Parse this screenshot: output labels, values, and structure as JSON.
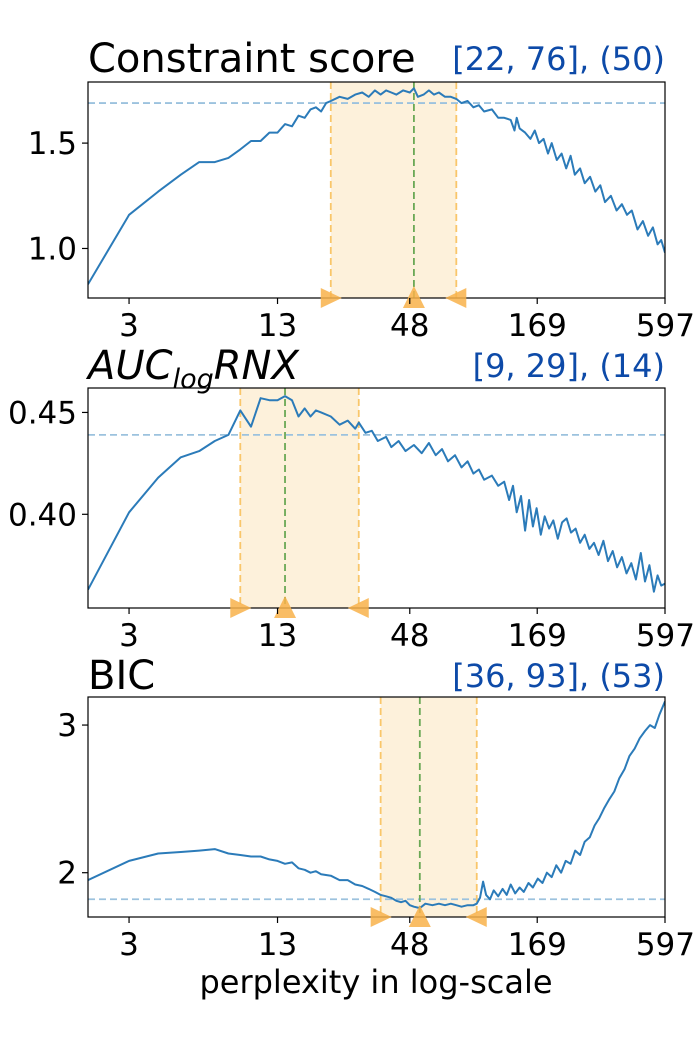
{
  "chart_data": [
    {
      "type": "line",
      "title": "Constraint score",
      "annotation": "[22, 76], (50)",
      "x_scale": "log",
      "xlim": [
        2,
        597
      ],
      "ylim": [
        0.765,
        1.79
      ],
      "x_ticks": [
        3,
        13,
        48,
        169,
        597
      ],
      "y_ticks": [
        1.0,
        1.5
      ],
      "y_tick_labels": [
        "1.0",
        "1.5"
      ],
      "threshold": 1.69,
      "range": [
        22,
        76
      ],
      "best": 50,
      "grid": false,
      "series": [
        {
          "values": [
            [
              2,
              0.83
            ],
            [
              3,
              1.16
            ],
            [
              4,
              1.27
            ],
            [
              5,
              1.35
            ],
            [
              6,
              1.41
            ],
            [
              7,
              1.41
            ],
            [
              8,
              1.43
            ],
            [
              9,
              1.47
            ],
            [
              10,
              1.51
            ],
            [
              11,
              1.51
            ],
            [
              12,
              1.55
            ],
            [
              13,
              1.55
            ],
            [
              14,
              1.59
            ],
            [
              15,
              1.58
            ],
            [
              16,
              1.63
            ],
            [
              17,
              1.62
            ],
            [
              18,
              1.66
            ],
            [
              19,
              1.67
            ],
            [
              20,
              1.65
            ],
            [
              21,
              1.69
            ],
            [
              22,
              1.7
            ],
            [
              24,
              1.72
            ],
            [
              26,
              1.71
            ],
            [
              28,
              1.73
            ],
            [
              30,
              1.74
            ],
            [
              32,
              1.72
            ],
            [
              34,
              1.75
            ],
            [
              36,
              1.73
            ],
            [
              38,
              1.75
            ],
            [
              40,
              1.74
            ],
            [
              42,
              1.73
            ],
            [
              45,
              1.75
            ],
            [
              48,
              1.74
            ],
            [
              50,
              1.76
            ],
            [
              52,
              1.72
            ],
            [
              55,
              1.73
            ],
            [
              58,
              1.75
            ],
            [
              61,
              1.73
            ],
            [
              64,
              1.74
            ],
            [
              68,
              1.72
            ],
            [
              72,
              1.72
            ],
            [
              76,
              1.71
            ],
            [
              80,
              1.69
            ],
            [
              85,
              1.7
            ],
            [
              90,
              1.67
            ],
            [
              95,
              1.68
            ],
            [
              100,
              1.65
            ],
            [
              108,
              1.66
            ],
            [
              115,
              1.62
            ],
            [
              122,
              1.62
            ],
            [
              130,
              1.61
            ],
            [
              135,
              1.56
            ],
            [
              138,
              1.62
            ],
            [
              142,
              1.57
            ],
            [
              150,
              1.55
            ],
            [
              158,
              1.52
            ],
            [
              165,
              1.56
            ],
            [
              172,
              1.5
            ],
            [
              180,
              1.52
            ],
            [
              188,
              1.45
            ],
            [
              195,
              1.5
            ],
            [
              205,
              1.42
            ],
            [
              215,
              1.45
            ],
            [
              225,
              1.38
            ],
            [
              235,
              1.44
            ],
            [
              245,
              1.35
            ],
            [
              258,
              1.38
            ],
            [
              270,
              1.31
            ],
            [
              285,
              1.34
            ],
            [
              300,
              1.27
            ],
            [
              315,
              1.3
            ],
            [
              330,
              1.22
            ],
            [
              350,
              1.25
            ],
            [
              370,
              1.18
            ],
            [
              390,
              1.21
            ],
            [
              410,
              1.16
            ],
            [
              430,
              1.18
            ],
            [
              455,
              1.09
            ],
            [
              480,
              1.13
            ],
            [
              505,
              1.06
            ],
            [
              530,
              1.1
            ],
            [
              555,
              1.02
            ],
            [
              575,
              1.04
            ],
            [
              597,
              0.98
            ]
          ]
        }
      ]
    },
    {
      "type": "line",
      "title": "AUC",
      "title_subscript": "log",
      "title_suffix": "RNX",
      "annotation": "[9, 29], (14)",
      "x_scale": "log",
      "xlim": [
        2,
        597
      ],
      "ylim": [
        0.354,
        0.462
      ],
      "x_ticks": [
        3,
        13,
        48,
        169,
        597
      ],
      "y_ticks": [
        0.4,
        0.45
      ],
      "y_tick_labels": [
        "0.40",
        "0.45"
      ],
      "threshold": 0.439,
      "range": [
        9,
        29
      ],
      "best": 14,
      "grid": false,
      "series": [
        {
          "values": [
            [
              2,
              0.363
            ],
            [
              3,
              0.401
            ],
            [
              4,
              0.418
            ],
            [
              5,
              0.428
            ],
            [
              6,
              0.431
            ],
            [
              7,
              0.436
            ],
            [
              8,
              0.439
            ],
            [
              9,
              0.451
            ],
            [
              10,
              0.443
            ],
            [
              11,
              0.457
            ],
            [
              12,
              0.456
            ],
            [
              13,
              0.456
            ],
            [
              14,
              0.458
            ],
            [
              15,
              0.456
            ],
            [
              16,
              0.448
            ],
            [
              17,
              0.452
            ],
            [
              18,
              0.448
            ],
            [
              19,
              0.451
            ],
            [
              20,
              0.45
            ],
            [
              22,
              0.448
            ],
            [
              24,
              0.444
            ],
            [
              26,
              0.446
            ],
            [
              28,
              0.442
            ],
            [
              29,
              0.445
            ],
            [
              31,
              0.44
            ],
            [
              33,
              0.441
            ],
            [
              35,
              0.436
            ],
            [
              38,
              0.438
            ],
            [
              40,
              0.433
            ],
            [
              43,
              0.436
            ],
            [
              46,
              0.431
            ],
            [
              50,
              0.434
            ],
            [
              54,
              0.43
            ],
            [
              58,
              0.435
            ],
            [
              62,
              0.429
            ],
            [
              66,
              0.432
            ],
            [
              70,
              0.426
            ],
            [
              75,
              0.429
            ],
            [
              80,
              0.423
            ],
            [
              85,
              0.426
            ],
            [
              90,
              0.42
            ],
            [
              95,
              0.422
            ],
            [
              100,
              0.417
            ],
            [
              108,
              0.419
            ],
            [
              115,
              0.414
            ],
            [
              122,
              0.416
            ],
            [
              128,
              0.407
            ],
            [
              133,
              0.414
            ],
            [
              138,
              0.401
            ],
            [
              144,
              0.409
            ],
            [
              150,
              0.392
            ],
            [
              156,
              0.407
            ],
            [
              162,
              0.394
            ],
            [
              168,
              0.403
            ],
            [
              175,
              0.39
            ],
            [
              182,
              0.399
            ],
            [
              190,
              0.393
            ],
            [
              198,
              0.397
            ],
            [
              207,
              0.388
            ],
            [
              216,
              0.396
            ],
            [
              226,
              0.398
            ],
            [
              236,
              0.391
            ],
            [
              247,
              0.393
            ],
            [
              258,
              0.386
            ],
            [
              270,
              0.39
            ],
            [
              283,
              0.383
            ],
            [
              296,
              0.386
            ],
            [
              310,
              0.38
            ],
            [
              325,
              0.387
            ],
            [
              340,
              0.377
            ],
            [
              356,
              0.382
            ],
            [
              372,
              0.374
            ],
            [
              390,
              0.379
            ],
            [
              408,
              0.371
            ],
            [
              428,
              0.376
            ],
            [
              448,
              0.368
            ],
            [
              470,
              0.381
            ],
            [
              490,
              0.367
            ],
            [
              512,
              0.375
            ],
            [
              535,
              0.362
            ],
            [
              555,
              0.37
            ],
            [
              575,
              0.365
            ],
            [
              597,
              0.366
            ]
          ]
        }
      ]
    },
    {
      "type": "line",
      "title": "BIC",
      "annotation": "[36, 93], (53)",
      "x_scale": "log",
      "xlim": [
        2,
        597
      ],
      "ylim": [
        1.7,
        3.19
      ],
      "x_ticks": [
        3,
        13,
        48,
        169,
        597
      ],
      "y_ticks": [
        2,
        3
      ],
      "y_tick_labels": [
        "2",
        "3"
      ],
      "threshold": 1.82,
      "range": [
        36,
        93
      ],
      "best": 53,
      "xlabel": "perplexity in log-scale",
      "grid": false,
      "series": [
        {
          "values": [
            [
              2,
              1.95
            ],
            [
              3,
              2.08
            ],
            [
              4,
              2.13
            ],
            [
              5,
              2.14
            ],
            [
              6,
              2.15
            ],
            [
              7,
              2.16
            ],
            [
              8,
              2.13
            ],
            [
              9,
              2.12
            ],
            [
              10,
              2.11
            ],
            [
              11,
              2.11
            ],
            [
              12,
              2.09
            ],
            [
              13,
              2.08
            ],
            [
              14,
              2.06
            ],
            [
              15,
              2.07
            ],
            [
              16,
              2.03
            ],
            [
              17,
              2.02
            ],
            [
              18,
              2.0
            ],
            [
              19,
              2.01
            ],
            [
              20,
              1.99
            ],
            [
              22,
              1.98
            ],
            [
              24,
              1.95
            ],
            [
              26,
              1.95
            ],
            [
              28,
              1.92
            ],
            [
              30,
              1.91
            ],
            [
              32,
              1.89
            ],
            [
              34,
              1.87
            ],
            [
              36,
              1.85
            ],
            [
              38,
              1.84
            ],
            [
              40,
              1.83
            ],
            [
              42,
              1.81
            ],
            [
              44,
              1.8
            ],
            [
              46,
              1.81
            ],
            [
              48,
              1.78
            ],
            [
              50,
              1.77
            ],
            [
              53,
              1.76
            ],
            [
              56,
              1.79
            ],
            [
              60,
              1.78
            ],
            [
              64,
              1.79
            ],
            [
              68,
              1.78
            ],
            [
              72,
              1.79
            ],
            [
              76,
              1.78
            ],
            [
              80,
              1.77
            ],
            [
              85,
              1.78
            ],
            [
              90,
              1.78
            ],
            [
              93,
              1.79
            ],
            [
              96,
              1.83
            ],
            [
              99,
              1.94
            ],
            [
              102,
              1.85
            ],
            [
              106,
              1.82
            ],
            [
              110,
              1.88
            ],
            [
              115,
              1.84
            ],
            [
              120,
              1.89
            ],
            [
              125,
              1.85
            ],
            [
              130,
              1.92
            ],
            [
              136,
              1.86
            ],
            [
              142,
              1.9
            ],
            [
              148,
              1.87
            ],
            [
              155,
              1.93
            ],
            [
              162,
              1.9
            ],
            [
              170,
              1.96
            ],
            [
              178,
              1.93
            ],
            [
              186,
              2.0
            ],
            [
              195,
              1.97
            ],
            [
              204,
              2.05
            ],
            [
              214,
              2.0
            ],
            [
              224,
              2.08
            ],
            [
              235,
              2.06
            ],
            [
              246,
              2.15
            ],
            [
              258,
              2.12
            ],
            [
              270,
              2.21
            ],
            [
              284,
              2.24
            ],
            [
              298,
              2.32
            ],
            [
              312,
              2.37
            ],
            [
              328,
              2.44
            ],
            [
              345,
              2.5
            ],
            [
              362,
              2.55
            ],
            [
              380,
              2.64
            ],
            [
              400,
              2.7
            ],
            [
              420,
              2.79
            ],
            [
              442,
              2.84
            ],
            [
              465,
              2.91
            ],
            [
              490,
              2.96
            ],
            [
              515,
              3.0
            ],
            [
              540,
              2.98
            ],
            [
              565,
              3.07
            ],
            [
              597,
              3.16
            ]
          ]
        }
      ]
    }
  ],
  "colors": {
    "line": "#2b7bb9",
    "threshold": "#9cc2de",
    "range": "#f9c66a",
    "range_fill": "#fdf1db",
    "best": "#6aa855",
    "marker": "#f8b24a",
    "annotation": "#0d4aa8"
  }
}
